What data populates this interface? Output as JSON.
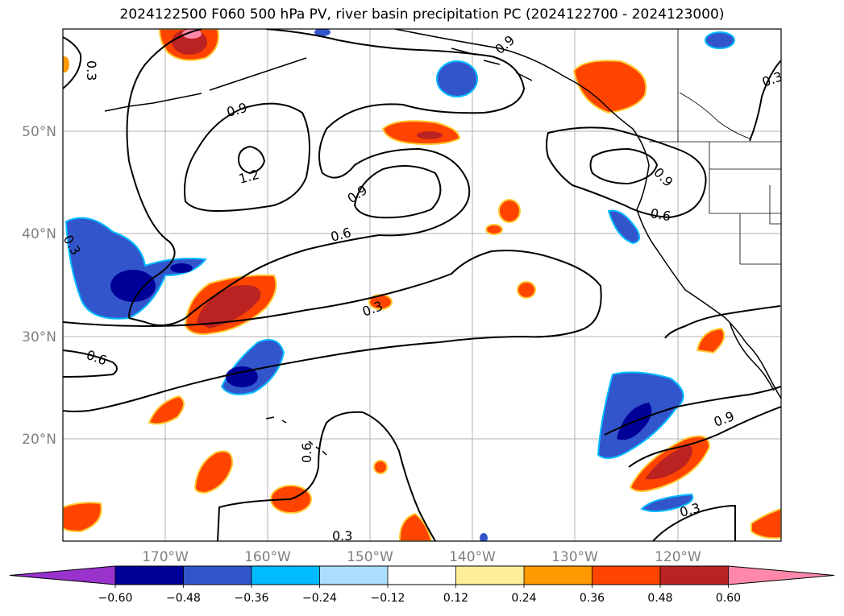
{
  "title": "2024122500 F060 500 hPa PV, river basin precipitation PC (2024122700 - 2024123000)",
  "map": {
    "lat_labels": [
      "50°N",
      "40°N",
      "30°N",
      "20°N"
    ],
    "lon_labels": [
      "170°W",
      "160°W",
      "150°W",
      "140°W",
      "130°W",
      "120°W"
    ],
    "contour_labels": [
      "0.3",
      "0.9",
      "1.2",
      "0.6",
      "0.9",
      "0.6",
      "0.9",
      "0.6",
      "0.3",
      "0.3",
      "0.6",
      "0.3",
      "0.9",
      "0.3",
      "0.3",
      "0.9"
    ]
  },
  "colorbar": {
    "ticks": [
      "−0.60",
      "−0.48",
      "−0.36",
      "−0.24",
      "−0.12",
      "0.12",
      "0.24",
      "0.36",
      "0.48",
      "0.60"
    ],
    "colors": [
      "#9933cc",
      "#000099",
      "#3355cc",
      "#00bbff",
      "#aaddff",
      "#ffffff",
      "#ffee99",
      "#ff9900",
      "#ff4400",
      "#bb2222",
      "#ff88aa"
    ]
  }
}
